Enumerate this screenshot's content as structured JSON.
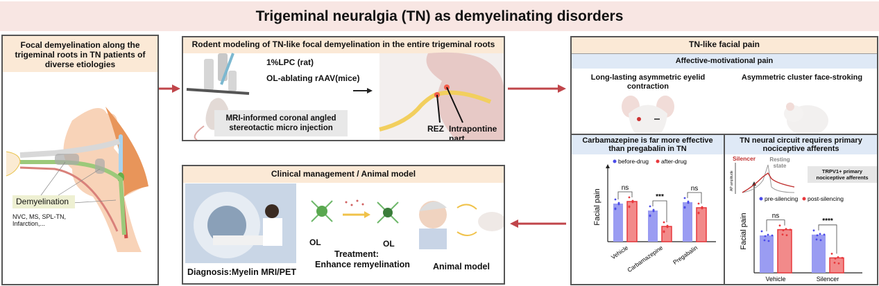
{
  "title": "Trigeminal neuralgia (TN) as demyelinating disorders",
  "left_panel": {
    "header": "Focal demyelination along the trigeminal roots in TN patients of diverse etiologies",
    "label": "Demyelination",
    "etiologies": "NVC, MS, SPL-TN, Infarction,..."
  },
  "top_center": {
    "header": "Rodent modeling of TN-like focal demyelination in the entire trigeminal roots",
    "method1": "1%LPC (rat)",
    "method2": "OL-ablating rAAV(mice)",
    "injection": "MRI-informed coronal angled stereotactic micro injection",
    "rez": "REZ",
    "intrapontine": "Intrapontine part"
  },
  "bottom_center": {
    "header": "Clinical management / Animal model",
    "diagnosis": "Diagnosis:Myelin MRI/PET",
    "ol1": "OL",
    "ol2": "OL",
    "treatment": "Treatment:",
    "treatment2": "Enhance remyelination",
    "animal": "Animal model"
  },
  "right_panel": {
    "header": "TN-like facial pain",
    "subheader": "Affective-motivational pain",
    "eyelid": "Long-lasting asymmetric eyelid contraction",
    "stroking": "Asymmetric cluster face-stroking",
    "drug_header": "Carbamazepine is far more effective than pregabalin in TN",
    "circuit_header": "TN neural circuit requires primary nociceptive afferents",
    "silencer": "Silencer",
    "resting": "Resting state",
    "ap_axis": "AP amplitude",
    "trpv1": "TRPV1+ primary nociceptive afferents"
  },
  "colors": {
    "before": "#4a4ae8",
    "after": "#e8383c",
    "bar_before": "#9a9cf2",
    "bar_after": "#f28a8a",
    "arrow": "#c0454a"
  },
  "chart_data": [
    {
      "type": "bar",
      "ylabel": "Facial pain",
      "categories": [
        "Vehicle",
        "Carbamazepine",
        "Pregabalin"
      ],
      "ylim": [
        0,
        1
      ],
      "series": [
        {
          "name": "before-drug",
          "values": [
            0.55,
            0.45,
            0.57
          ]
        },
        {
          "name": "after-drug",
          "values": [
            0.58,
            0.22,
            0.49
          ]
        }
      ],
      "significance": [
        "ns",
        "***",
        "ns"
      ],
      "legend": "top"
    },
    {
      "type": "bar",
      "ylabel": "Facial pain",
      "categories": [
        "Vehicle",
        "Silencer"
      ],
      "ylim": [
        0,
        1
      ],
      "series": [
        {
          "name": "pre-silencing",
          "values": [
            0.45,
            0.46
          ]
        },
        {
          "name": "post-silencing",
          "values": [
            0.52,
            0.18
          ]
        }
      ],
      "significance": [
        "ns",
        "****"
      ],
      "legend": "top"
    }
  ]
}
